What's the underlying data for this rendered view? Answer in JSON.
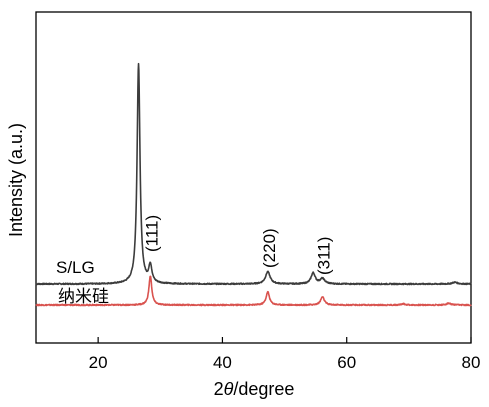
{
  "chart_data": {
    "type": "line",
    "xlabel_prefix": "2",
    "xlabel_theta": "θ",
    "xlabel_suffix": "/degree",
    "ylabel": "Intensity (a.u.)",
    "xlim": [
      10,
      80
    ],
    "x_ticks": [
      "20",
      "40",
      "60",
      "80"
    ],
    "y_ticks_shown": false,
    "grid": false,
    "series": [
      {
        "name": "S/LG",
        "color": "#3c3c3c",
        "baseline": 1.0,
        "peaks": [
          {
            "x": 26.5,
            "height": 7.6,
            "width": 0.28
          },
          {
            "x": 28.4,
            "height": 0.6,
            "width": 0.3
          },
          {
            "x": 47.3,
            "height": 0.42,
            "width": 0.45
          },
          {
            "x": 54.6,
            "height": 0.38,
            "width": 0.4
          },
          {
            "x": 56.1,
            "height": 0.18,
            "width": 0.45
          },
          {
            "x": 77.4,
            "height": 0.06,
            "width": 0.5
          }
        ]
      },
      {
        "name": "纳米硅",
        "color": "#d9534f",
        "baseline": 0.0,
        "peaks": [
          {
            "x": 28.4,
            "height": 1.0,
            "width": 0.28
          },
          {
            "x": 47.3,
            "height": 0.45,
            "width": 0.33
          },
          {
            "x": 56.1,
            "height": 0.28,
            "width": 0.36
          },
          {
            "x": 69.1,
            "height": 0.04,
            "width": 0.4
          },
          {
            "x": 76.4,
            "height": 0.06,
            "width": 0.4
          }
        ]
      }
    ],
    "peak_labels": [
      {
        "text": "(111)",
        "x": 28.4
      },
      {
        "text": "(220)",
        "x": 47.3
      },
      {
        "text": "(311)",
        "x": 56.1
      }
    ]
  }
}
